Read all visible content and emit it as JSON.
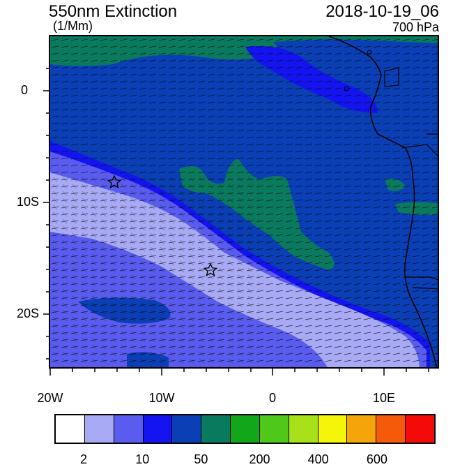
{
  "title_left": "550nm Extinction",
  "units": "(1/Mm)",
  "title_right": "2018-10-19_06",
  "level": "700 hPa",
  "lat_labels": [
    "0",
    "10S",
    "20S"
  ],
  "lon_labels": [
    "20W",
    "10W",
    "0",
    "10E"
  ],
  "colorbar": {
    "colors": [
      "#ffffff",
      "#a8aaf5",
      "#5a5cf0",
      "#1414f0",
      "#0a3fb5",
      "#0a7a5e",
      "#12a61a",
      "#4fc81a",
      "#a8e01a",
      "#f5f50a",
      "#f5a50a",
      "#f55a0a",
      "#f50a0a"
    ],
    "labels": [
      "2",
      "10",
      "50",
      "200",
      "400",
      "600"
    ]
  },
  "markers": [
    "star",
    "star"
  ]
}
